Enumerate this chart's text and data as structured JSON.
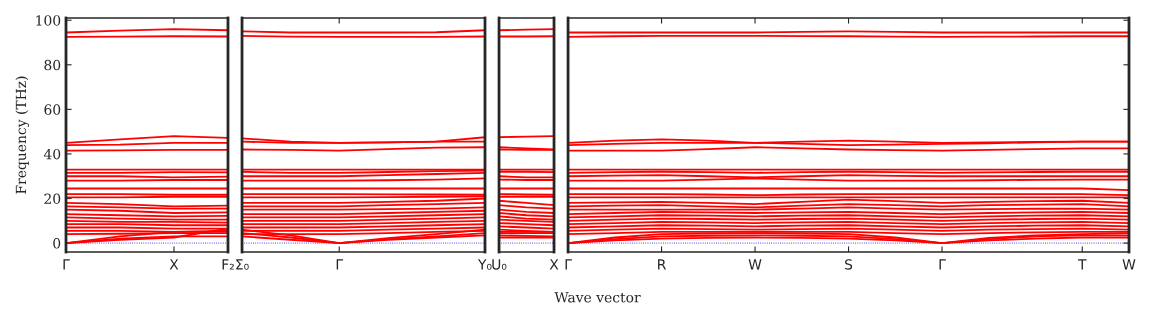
{
  "chart_data": [
    {
      "type": "line",
      "ylabel": "Frequency (THz)",
      "categories": [
        "Γ",
        null,
        "X",
        "F₂"
      ],
      "ylim": [
        -4,
        101
      ],
      "yticks": [
        0,
        20,
        40,
        60,
        80,
        100
      ],
      "tick_labels": "xy",
      "marker": "none",
      "line_style": "solid",
      "ref_lines": [
        {
          "axis": "y",
          "value": 0,
          "color": "#0000ff",
          "line_style": "dotted"
        }
      ],
      "series": [
        {
          "color": "#ff0000",
          "values": [
            94.5,
            95.3,
            96,
            95.5
          ]
        },
        {
          "color": "#ff0000",
          "values": [
            92.5,
            92.6,
            92.8,
            92.7
          ]
        },
        {
          "color": "#ff0000",
          "values": [
            45,
            46.5,
            48,
            47.2
          ]
        },
        {
          "color": "#ff0000",
          "values": [
            44,
            44.2,
            45,
            45
          ]
        },
        {
          "color": "#ff0000",
          "values": [
            41.5,
            41.6,
            41.8,
            41.8
          ]
        },
        {
          "color": "#ff0000",
          "values": [
            33,
            33,
            33,
            33
          ]
        },
        {
          "color": "#ff0000",
          "values": [
            31.5,
            31.5,
            31.8,
            31.7
          ]
        },
        {
          "color": "#ff0000",
          "values": [
            30,
            30,
            29.5,
            29.8
          ]
        },
        {
          "color": "#ff0000",
          "values": [
            28,
            28,
            28.3,
            28.3
          ]
        },
        {
          "color": "#ff0000",
          "values": [
            24.5,
            24.5,
            24.5,
            24.5
          ]
        },
        {
          "color": "#ff0000",
          "values": [
            22,
            22,
            21.7,
            21.7
          ]
        },
        {
          "color": "#ff0000",
          "values": [
            20.5,
            20.5,
            20.8,
            20.8
          ]
        },
        {
          "color": "#ff0000",
          "values": [
            18,
            17.5,
            16.5,
            16.8
          ]
        },
        {
          "color": "#ff0000",
          "values": [
            16.5,
            16,
            15.5,
            15.5
          ]
        },
        {
          "color": "#ff0000",
          "values": [
            15,
            14.5,
            13.5,
            13.8
          ]
        },
        {
          "color": "#ff0000",
          "values": [
            13,
            12.5,
            12,
            12.2
          ]
        },
        {
          "color": "#ff0000",
          "values": [
            11.5,
            11,
            10.5,
            10.5
          ]
        },
        {
          "color": "#ff0000",
          "values": [
            10,
            9.5,
            9.5,
            9.2
          ]
        },
        {
          "color": "#ff0000",
          "values": [
            8.5,
            8.5,
            8,
            8
          ]
        },
        {
          "color": "#ff0000",
          "values": [
            7,
            7,
            6.5,
            6.5
          ]
        },
        {
          "color": "#ff0000",
          "values": [
            5.5,
            5.5,
            5,
            5.2
          ]
        },
        {
          "color": "#ff0000",
          "values": [
            4,
            4.2,
            4.5,
            4.5
          ]
        },
        {
          "color": "#ff0000",
          "values": [
            0,
            2,
            3,
            3
          ]
        },
        {
          "color": "#ff0000",
          "values": [
            0,
            3,
            5,
            5.5
          ]
        },
        {
          "color": "#ff0000",
          "values": [
            0,
            1.5,
            2.5,
            6.5
          ]
        }
      ]
    },
    {
      "type": "line",
      "categories": [
        "Σ₀",
        null,
        "Γ",
        null,
        null,
        "Y₀"
      ],
      "ylim": [
        -4,
        101
      ],
      "tick_labels": "x",
      "marker": "none",
      "line_style": "solid",
      "ref_lines": [
        {
          "axis": "y",
          "value": 0,
          "color": "#0000ff",
          "line_style": "dotted"
        }
      ],
      "series": [
        {
          "color": "#ff0000",
          "values": [
            95,
            94.5,
            94.5,
            94.5,
            94.6,
            95.5
          ]
        },
        {
          "color": "#ff0000",
          "values": [
            93,
            92.6,
            92.5,
            92.5,
            92.5,
            92.7
          ]
        },
        {
          "color": "#ff0000",
          "values": [
            47,
            45.5,
            45,
            45.2,
            45.5,
            47.5
          ]
        },
        {
          "color": "#ff0000",
          "values": [
            45.5,
            45,
            45,
            45.2,
            45.5,
            45.5
          ]
        },
        {
          "color": "#ff0000",
          "values": [
            42,
            41.8,
            41.5,
            42.2,
            42.8,
            43
          ]
        },
        {
          "color": "#ff0000",
          "values": [
            33,
            33,
            33,
            33,
            33,
            33
          ]
        },
        {
          "color": "#ff0000",
          "values": [
            32,
            31.5,
            31.5,
            31.9,
            32.3,
            32.5
          ]
        },
        {
          "color": "#ff0000",
          "values": [
            30,
            30,
            30,
            30.5,
            31,
            31.5
          ]
        },
        {
          "color": "#ff0000",
          "values": [
            28,
            28,
            28,
            28.2,
            28.5,
            29
          ]
        },
        {
          "color": "#ff0000",
          "values": [
            24.5,
            24.5,
            24.5,
            24.5,
            24.5,
            24.5
          ]
        },
        {
          "color": "#ff0000",
          "values": [
            22,
            22,
            22,
            21.9,
            21.8,
            21.7
          ]
        },
        {
          "color": "#ff0000",
          "values": [
            20.5,
            20.5,
            20.5,
            20.6,
            20.8,
            21
          ]
        },
        {
          "color": "#ff0000",
          "values": [
            18,
            18,
            18,
            18.5,
            19,
            20
          ]
        },
        {
          "color": "#ff0000",
          "values": [
            16.5,
            16.5,
            16.5,
            17,
            17.5,
            18
          ]
        },
        {
          "color": "#ff0000",
          "values": [
            15,
            15,
            15,
            15.2,
            15.5,
            16
          ]
        },
        {
          "color": "#ff0000",
          "values": [
            13,
            13,
            13,
            13.5,
            14,
            14.5
          ]
        },
        {
          "color": "#ff0000",
          "values": [
            11.5,
            11.5,
            11.5,
            12,
            12.5,
            13
          ]
        },
        {
          "color": "#ff0000",
          "values": [
            10,
            10,
            10,
            10.5,
            11,
            11.5
          ]
        },
        {
          "color": "#ff0000",
          "values": [
            8.5,
            8.5,
            8.5,
            9,
            9.5,
            10
          ]
        },
        {
          "color": "#ff0000",
          "values": [
            7,
            7,
            7,
            7.5,
            8,
            8.5
          ]
        },
        {
          "color": "#ff0000",
          "values": [
            5.5,
            5.5,
            5.5,
            6,
            6.5,
            7
          ]
        },
        {
          "color": "#ff0000",
          "values": [
            4,
            4,
            4,
            4.5,
            5,
            5.5
          ]
        },
        {
          "color": "#ff0000",
          "values": [
            3,
            1.5,
            0,
            1.5,
            2.5,
            3.5
          ]
        },
        {
          "color": "#ff0000",
          "values": [
            4.5,
            2.5,
            0,
            1.8,
            3,
            4.5
          ]
        },
        {
          "color": "#ff0000",
          "values": [
            6,
            3.5,
            0,
            2.2,
            4,
            6
          ]
        }
      ]
    },
    {
      "type": "line",
      "categories": [
        "U₀",
        null,
        "X"
      ],
      "ylim": [
        -4,
        101
      ],
      "tick_labels": "x",
      "marker": "none",
      "line_style": "solid",
      "ref_lines": [
        {
          "axis": "y",
          "value": 0,
          "color": "#0000ff",
          "line_style": "dotted"
        }
      ],
      "series": [
        {
          "color": "#ff0000",
          "values": [
            95.5,
            95.8,
            96
          ]
        },
        {
          "color": "#ff0000",
          "values": [
            92.7,
            92.7,
            92.8
          ]
        },
        {
          "color": "#ff0000",
          "values": [
            47.5,
            47.8,
            48
          ]
        },
        {
          "color": "#ff0000",
          "values": [
            43,
            42.5,
            42
          ]
        },
        {
          "color": "#ff0000",
          "values": [
            42,
            41.8,
            41.8
          ]
        },
        {
          "color": "#ff0000",
          "values": [
            33,
            33,
            33
          ]
        },
        {
          "color": "#ff0000",
          "values": [
            32,
            32,
            31.8
          ]
        },
        {
          "color": "#ff0000",
          "values": [
            30,
            29.5,
            29.5
          ]
        },
        {
          "color": "#ff0000",
          "values": [
            28.5,
            28.3,
            28.3
          ]
        },
        {
          "color": "#ff0000",
          "values": [
            24.5,
            24.5,
            24.5
          ]
        },
        {
          "color": "#ff0000",
          "values": [
            22,
            21.8,
            21.7
          ]
        },
        {
          "color": "#ff0000",
          "values": [
            20.8,
            20.8,
            20.8
          ]
        },
        {
          "color": "#ff0000",
          "values": [
            19,
            18,
            17
          ]
        },
        {
          "color": "#ff0000",
          "values": [
            17,
            16,
            15.5
          ]
        },
        {
          "color": "#ff0000",
          "values": [
            15,
            14,
            13.5
          ]
        },
        {
          "color": "#ff0000",
          "values": [
            13.5,
            12.5,
            12
          ]
        },
        {
          "color": "#ff0000",
          "values": [
            12,
            11,
            10.5
          ]
        },
        {
          "color": "#ff0000",
          "values": [
            10.5,
            10,
            9.5
          ]
        },
        {
          "color": "#ff0000",
          "values": [
            9,
            8.5,
            8
          ]
        },
        {
          "color": "#ff0000",
          "values": [
            7.5,
            7,
            6.5
          ]
        },
        {
          "color": "#ff0000",
          "values": [
            6,
            5.5,
            5
          ]
        },
        {
          "color": "#ff0000",
          "values": [
            4.5,
            4.5,
            4.5
          ]
        },
        {
          "color": "#ff0000",
          "values": [
            3.5,
            3.2,
            3
          ]
        },
        {
          "color": "#ff0000",
          "values": [
            5,
            5,
            5
          ]
        },
        {
          "color": "#ff0000",
          "values": [
            2.5,
            2.5,
            2.5
          ]
        }
      ]
    },
    {
      "type": "line",
      "xlabel": "Wave vector",
      "categories": [
        "Γ",
        null,
        "R",
        null,
        "W",
        null,
        "S",
        null,
        "Γ",
        null,
        null,
        "T",
        "W"
      ],
      "ylim": [
        -4,
        101
      ],
      "tick_labels": "x",
      "marker": "none",
      "line_style": "solid",
      "ref_lines": [
        {
          "axis": "y",
          "value": 0,
          "color": "#0000ff",
          "line_style": "dotted"
        }
      ],
      "series": [
        {
          "color": "#ff0000",
          "values": [
            94.5,
            94.5,
            94.5,
            94.5,
            94.5,
            94.8,
            95,
            94.8,
            94.5,
            94.5,
            94.5,
            94.5,
            94.5
          ]
        },
        {
          "color": "#ff0000",
          "values": [
            92.5,
            92.8,
            93,
            93,
            93,
            92.9,
            92.8,
            92.6,
            92.5,
            92.6,
            92.7,
            92.8,
            92.8
          ]
        },
        {
          "color": "#ff0000",
          "values": [
            45,
            46,
            46.5,
            46,
            45,
            45.5,
            46,
            45.5,
            45,
            45.2,
            45.4,
            45.5,
            45.5
          ]
        },
        {
          "color": "#ff0000",
          "values": [
            44,
            44.5,
            45,
            45,
            45,
            44.5,
            44,
            44.2,
            44.5,
            44.8,
            45.2,
            45.5,
            45.5
          ]
        },
        {
          "color": "#ff0000",
          "values": [
            41.5,
            41.5,
            41.5,
            42.2,
            43,
            42.5,
            42,
            41.7,
            41.5,
            41.8,
            42.2,
            42.5,
            42.5
          ]
        },
        {
          "color": "#ff0000",
          "values": [
            33,
            33,
            33,
            33,
            33,
            33,
            33,
            33,
            33,
            33,
            33,
            33,
            33
          ]
        },
        {
          "color": "#ff0000",
          "values": [
            31.5,
            31.8,
            32,
            31.8,
            31.5,
            31.8,
            32,
            31.8,
            31.5,
            31.7,
            31.9,
            32,
            32
          ]
        },
        {
          "color": "#ff0000",
          "values": [
            30,
            30.3,
            30.5,
            30,
            29.5,
            30,
            30.5,
            30.2,
            30,
            30,
            30,
            30,
            30
          ]
        },
        {
          "color": "#ff0000",
          "values": [
            28,
            28,
            28,
            28.5,
            29,
            28.5,
            28,
            28,
            28,
            28.2,
            28.4,
            28.5,
            28.5
          ]
        },
        {
          "color": "#ff0000",
          "values": [
            24.5,
            24.5,
            24.5,
            24.5,
            24.5,
            24.5,
            24.5,
            24.5,
            24.5,
            24.5,
            24.5,
            24.5,
            23.8
          ]
        },
        {
          "color": "#ff0000",
          "values": [
            22,
            22,
            22,
            21.8,
            21.5,
            21.8,
            22,
            22,
            22,
            22,
            22,
            22,
            21.5
          ]
        },
        {
          "color": "#ff0000",
          "values": [
            20.5,
            20.5,
            20.5,
            20.5,
            20.5,
            20.5,
            20.5,
            20.5,
            20.5,
            20.5,
            20.5,
            20.5,
            20.5
          ]
        },
        {
          "color": "#ff0000",
          "values": [
            18,
            18.3,
            18.5,
            18,
            17.5,
            18.5,
            19.5,
            18.8,
            18,
            18.5,
            18.8,
            19,
            18
          ]
        },
        {
          "color": "#ff0000",
          "values": [
            16.5,
            16.8,
            17,
            16.5,
            16,
            16.8,
            17.5,
            17,
            16.5,
            17,
            17.3,
            17.5,
            16.5
          ]
        },
        {
          "color": "#ff0000",
          "values": [
            15,
            15,
            15,
            15,
            15,
            15.5,
            16,
            15.5,
            15,
            15.2,
            15.4,
            15.5,
            15
          ]
        },
        {
          "color": "#ff0000",
          "values": [
            13,
            13.5,
            14,
            13.8,
            13.5,
            13.8,
            14,
            13.5,
            13,
            13.5,
            13.8,
            14,
            13.5
          ]
        },
        {
          "color": "#ff0000",
          "values": [
            11.5,
            12,
            12.5,
            12.3,
            12,
            12.3,
            12.5,
            12,
            11.5,
            12,
            12.3,
            12.5,
            12
          ]
        },
        {
          "color": "#ff0000",
          "values": [
            10,
            10.5,
            11,
            10.8,
            10.5,
            10.8,
            11,
            10.5,
            10,
            10.5,
            10.8,
            11,
            10.5
          ]
        },
        {
          "color": "#ff0000",
          "values": [
            8.5,
            9,
            9.5,
            9.3,
            9,
            9.3,
            9.5,
            9,
            8.5,
            9,
            9.3,
            9.5,
            9
          ]
        },
        {
          "color": "#ff0000",
          "values": [
            7,
            7.5,
            8,
            7.8,
            7.5,
            7.8,
            8,
            7.5,
            7,
            7.5,
            7.8,
            8,
            7.5
          ]
        },
        {
          "color": "#ff0000",
          "values": [
            5.5,
            6,
            6.5,
            6.3,
            6,
            6.3,
            6.5,
            6,
            5.5,
            6,
            6.3,
            6.5,
            6
          ]
        },
        {
          "color": "#ff0000",
          "values": [
            4,
            4.5,
            5,
            5,
            5,
            5,
            5,
            4.5,
            4,
            4.5,
            4.8,
            5,
            5
          ]
        },
        {
          "color": "#ff0000",
          "values": [
            0,
            1.8,
            3,
            3.3,
            3.5,
            3.3,
            3,
            1.8,
            0,
            1.8,
            3,
            3.5,
            3.5
          ]
        },
        {
          "color": "#ff0000",
          "values": [
            0,
            2.5,
            4,
            4.3,
            4.5,
            4.3,
            4,
            2.5,
            0,
            2.3,
            3.5,
            4,
            4.5
          ]
        },
        {
          "color": "#ff0000",
          "values": [
            0,
            1.2,
            2,
            2.3,
            2.5,
            2.3,
            2,
            1.2,
            0,
            1.2,
            2,
            2.5,
            2.5
          ]
        }
      ]
    }
  ]
}
